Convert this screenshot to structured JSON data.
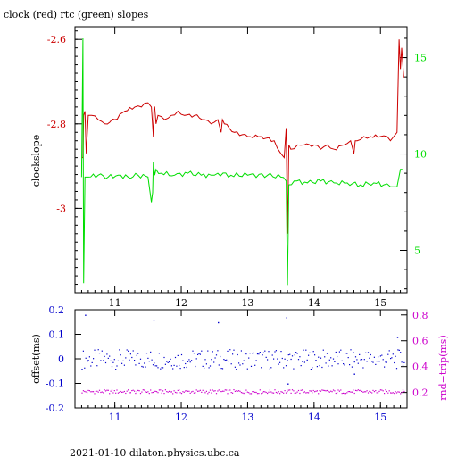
{
  "title": "clock (red) rtc (green) slopes",
  "footer": "2021-01-10  dilaton.physics.ubc.ca",
  "colors": {
    "clock": "#cc0000",
    "rtc": "#00dd00",
    "offset": "#0000cc",
    "rndtrip": "#cc00cc",
    "frame": "#000000"
  },
  "chart_data": [
    {
      "type": "line",
      "title": "clock (red) rtc (green) slopes",
      "xlim": [
        10.4,
        15.4
      ],
      "x_ticks": [
        "11",
        "12",
        "13",
        "14",
        "15"
      ],
      "ylabel": "clockslope",
      "ylim": [
        -3.2,
        -2.57
      ],
      "y_ticks": [
        "-2.6",
        "-2.8",
        "-3"
      ],
      "y2lim": [
        2.8,
        16.6
      ],
      "y2_ticks": [
        "15",
        "10",
        "5"
      ],
      "series": [
        {
          "name": "clock",
          "axis": "left",
          "x": [
            10.5,
            10.52,
            10.53,
            10.55,
            10.57,
            10.6,
            10.65,
            10.75,
            10.85,
            11.0,
            11.15,
            11.3,
            11.4,
            11.5,
            11.55,
            11.58,
            11.59,
            11.6,
            11.62,
            11.65,
            11.75,
            11.85,
            11.95,
            12.05,
            12.2,
            12.35,
            12.45,
            12.55,
            12.6,
            12.62,
            12.65,
            12.8,
            13.0,
            13.2,
            13.4,
            13.5,
            13.55,
            13.58,
            13.6,
            13.62,
            13.65,
            13.75,
            13.85,
            14.0,
            14.1,
            14.2,
            14.3,
            14.45,
            14.55,
            14.6,
            14.62,
            14.65,
            14.75,
            14.85,
            15.0,
            15.1,
            15.15,
            15.2,
            15.25,
            15.28,
            15.3,
            15.32,
            15.35
          ],
          "values": [
            -2.88,
            -2.88,
            -2.78,
            -2.77,
            -2.87,
            -2.78,
            -2.78,
            -2.79,
            -2.8,
            -2.79,
            -2.77,
            -2.76,
            -2.76,
            -2.75,
            -2.76,
            -2.83,
            -2.76,
            -2.76,
            -2.8,
            -2.78,
            -2.79,
            -2.78,
            -2.77,
            -2.78,
            -2.78,
            -2.79,
            -2.8,
            -2.79,
            -2.82,
            -2.79,
            -2.8,
            -2.82,
            -2.83,
            -2.83,
            -2.84,
            -2.87,
            -2.88,
            -2.81,
            -3.06,
            -2.85,
            -2.86,
            -2.85,
            -2.85,
            -2.85,
            -2.86,
            -2.85,
            -2.86,
            -2.85,
            -2.84,
            -2.87,
            -2.84,
            -2.84,
            -2.83,
            -2.83,
            -2.83,
            -2.83,
            -2.84,
            -2.83,
            -2.82,
            -2.6,
            -2.67,
            -2.62,
            -2.69
          ]
        },
        {
          "name": "rtc",
          "axis": "right",
          "x": [
            10.5,
            10.52,
            10.53,
            10.55,
            10.6,
            10.75,
            10.9,
            11.05,
            11.2,
            11.35,
            11.5,
            11.55,
            11.57,
            11.58,
            11.6,
            11.62,
            11.7,
            11.9,
            12.1,
            12.3,
            12.45,
            12.55,
            12.75,
            13.0,
            13.3,
            13.5,
            13.58,
            13.6,
            13.62,
            13.7,
            13.9,
            14.1,
            14.3,
            14.5,
            14.7,
            14.9,
            15.05,
            15.15,
            15.2,
            15.25,
            15.3,
            15.33
          ],
          "values": [
            8.8,
            16.0,
            3.3,
            8.8,
            8.8,
            8.9,
            8.8,
            8.9,
            8.8,
            8.9,
            8.8,
            7.5,
            8.0,
            9.6,
            8.9,
            9.2,
            9.0,
            8.9,
            9.0,
            8.9,
            8.9,
            9.0,
            8.9,
            8.9,
            8.9,
            8.8,
            8.6,
            3.2,
            8.4,
            8.6,
            8.5,
            8.6,
            8.5,
            8.5,
            8.4,
            8.5,
            8.4,
            8.3,
            8.3,
            8.3,
            9.2,
            9.2
          ]
        }
      ]
    },
    {
      "type": "scatter",
      "xlim": [
        10.4,
        15.4
      ],
      "x_ticks": [
        "11",
        "12",
        "13",
        "14",
        "15"
      ],
      "ylabel": "offset(ms)",
      "ylim": [
        -0.2,
        0.2
      ],
      "y_ticks": [
        "0.2",
        "0.1",
        "0",
        "-0.1",
        "-0.2"
      ],
      "y2label": "rnd−trip(ms)",
      "y2lim": [
        0.08,
        0.84
      ],
      "y2_ticks": [
        "0.8",
        "0.6",
        "0.4",
        "0.2"
      ],
      "series": [
        {
          "name": "offset",
          "axis": "left",
          "x_range": [
            10.5,
            15.35
          ],
          "center": 0.0,
          "spread": 0.04,
          "outliers": [
            [
              10.55,
              0.18
            ],
            [
              11.58,
              0.16
            ],
            [
              12.55,
              0.15
            ],
            [
              13.58,
              0.17
            ],
            [
              13.6,
              -0.1
            ],
            [
              14.6,
              -0.06
            ],
            [
              15.25,
              0.09
            ]
          ]
        },
        {
          "name": "rnd-trip",
          "axis": "right",
          "x_range": [
            10.5,
            15.35
          ],
          "center": 0.21,
          "spread": 0.015
        }
      ]
    }
  ]
}
